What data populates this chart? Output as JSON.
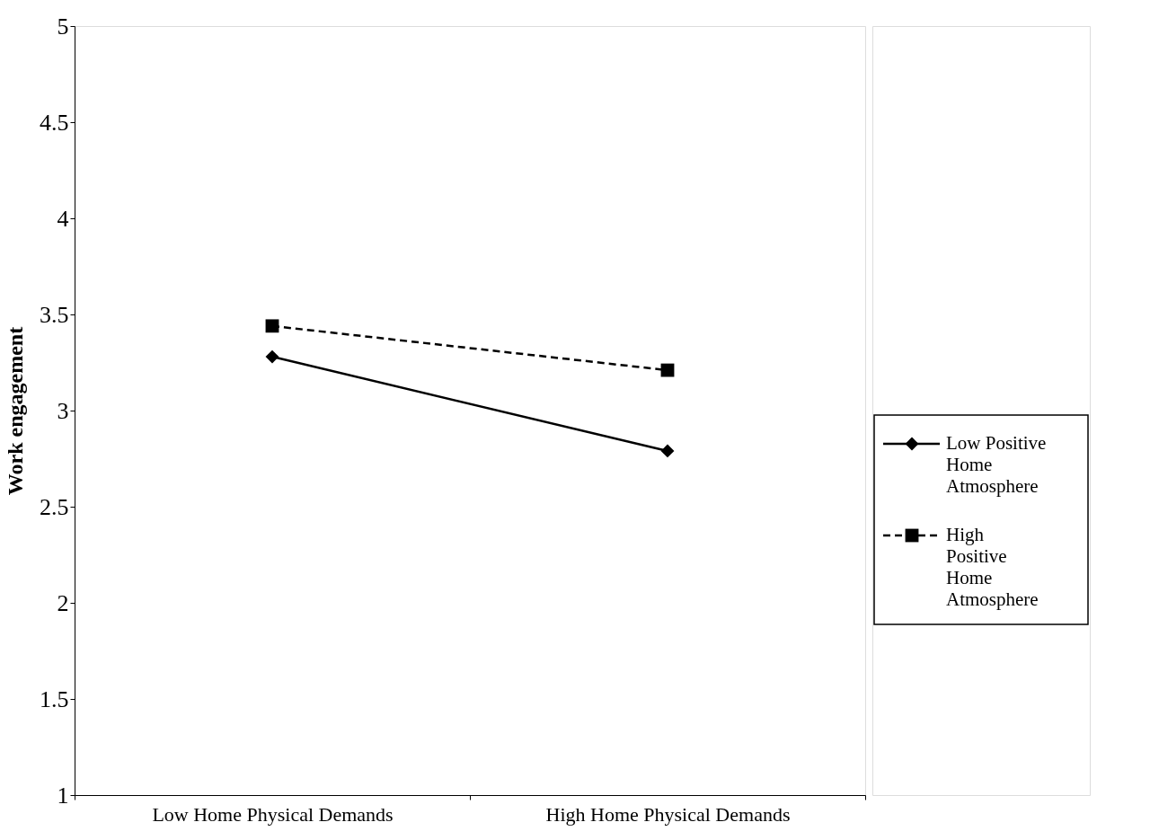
{
  "chart_data": {
    "type": "line",
    "ylabel": "Work engagement",
    "categories": [
      "Low Home Physical Demands",
      "High Home Physical Demands"
    ],
    "series": [
      {
        "name": "Low Positive Home Atmosphere",
        "color": "#000000",
        "values": [
          3.28,
          2.79
        ],
        "marker": "diamond",
        "line_style": "solid"
      },
      {
        "name": "High Positive Home Atmosphere",
        "color": "#000000",
        "values": [
          3.44,
          3.21
        ],
        "marker": "square",
        "line_style": "dashed"
      }
    ],
    "ylim": [
      1,
      5
    ],
    "yticks": [
      1,
      1.5,
      2,
      2.5,
      3,
      3.5,
      4,
      4.5,
      5
    ],
    "grid": false,
    "legend": "right"
  }
}
